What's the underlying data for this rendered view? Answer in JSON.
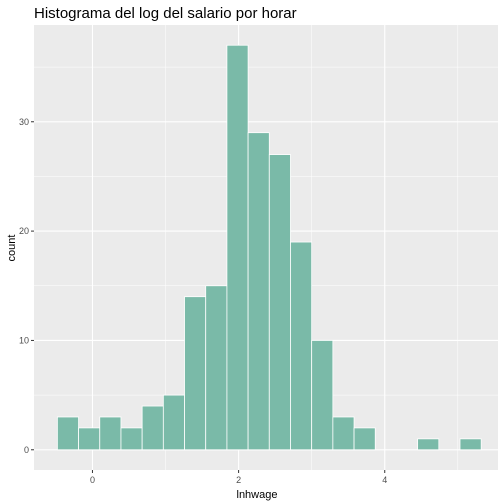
{
  "chart_data": {
    "type": "bar",
    "title": "Histograma del log del salario por horar",
    "xlabel": "lnhwage",
    "ylabel": "count",
    "xlim": [
      -0.8,
      5.55
    ],
    "ylim": [
      -1.85,
      38.85
    ],
    "xticks": [
      "0",
      "2",
      "4"
    ],
    "yticks": [
      "0",
      "10",
      "20",
      "30"
    ],
    "bin_width": 0.2899,
    "bins": [
      {
        "x": -0.335,
        "count": 3
      },
      {
        "x": -0.045,
        "count": 2
      },
      {
        "x": 0.245,
        "count": 3
      },
      {
        "x": 0.535,
        "count": 2
      },
      {
        "x": 0.825,
        "count": 4
      },
      {
        "x": 1.115,
        "count": 5
      },
      {
        "x": 1.405,
        "count": 14
      },
      {
        "x": 1.695,
        "count": 15
      },
      {
        "x": 1.985,
        "count": 37
      },
      {
        "x": 2.275,
        "count": 29
      },
      {
        "x": 2.565,
        "count": 27
      },
      {
        "x": 2.855,
        "count": 19
      },
      {
        "x": 3.145,
        "count": 10
      },
      {
        "x": 3.435,
        "count": 3
      },
      {
        "x": 3.725,
        "count": 2
      },
      {
        "x": 4.015,
        "count": 0
      },
      {
        "x": 4.305,
        "count": 0
      },
      {
        "x": 4.595,
        "count": 1
      },
      {
        "x": 4.885,
        "count": 0
      },
      {
        "x": 5.175,
        "count": 1
      }
    ],
    "bar_fill": "#7abaa8",
    "bar_outline": "#ffffff",
    "panel_background": "#ebebeb",
    "grid": true,
    "grid_color": "#ffffff"
  }
}
